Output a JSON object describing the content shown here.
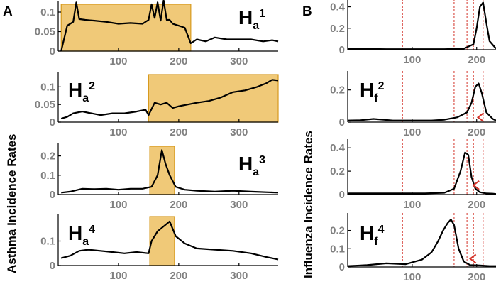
{
  "panel_labels": {
    "a": "A",
    "b": "B"
  },
  "ylabels": {
    "asthma": "Asthma Incidence Rates",
    "influenza": "Influenza Incidence Rates"
  },
  "colors": {
    "band_fill": "#f0c978",
    "band_edge": "#d79a1e",
    "series": "#000000",
    "vline": "#d4342a",
    "tick": "#808080"
  },
  "chart_data": [
    {
      "type": "line",
      "panel": "A",
      "label_main": "H",
      "label_sub": "a",
      "label_sup": "1",
      "xlim": [
        0,
        365
      ],
      "ylim": [
        0,
        0.12
      ],
      "xticks": [
        "100",
        "200",
        "300"
      ],
      "yticks": [
        "0",
        "0.05",
        "0.1"
      ],
      "highlight": [
        5,
        220
      ],
      "x": [
        5,
        15,
        25,
        30,
        35,
        45,
        60,
        80,
        100,
        120,
        140,
        150,
        155,
        160,
        165,
        170,
        175,
        180,
        185,
        190,
        200,
        210,
        220,
        230,
        245,
        260,
        280,
        300,
        320,
        340,
        355,
        365
      ],
      "y": [
        0.0,
        0.065,
        0.075,
        0.125,
        0.082,
        0.08,
        0.078,
        0.075,
        0.07,
        0.072,
        0.07,
        0.08,
        0.12,
        0.085,
        0.125,
        0.078,
        0.13,
        0.08,
        0.08,
        0.07,
        0.065,
        0.06,
        0.02,
        0.03,
        0.025,
        0.035,
        0.03,
        0.03,
        0.03,
        0.025,
        0.028,
        0.025
      ]
    },
    {
      "type": "line",
      "panel": "A",
      "label_main": "H",
      "label_sub": "a",
      "label_sup": "2",
      "xlim": [
        0,
        365
      ],
      "ylim": [
        0,
        0.135
      ],
      "xticks": [
        "100",
        "200",
        "300"
      ],
      "yticks": [
        "0",
        "0.05",
        "0.1"
      ],
      "highlight": [
        150,
        365
      ],
      "x": [
        5,
        15,
        25,
        40,
        55,
        70,
        90,
        110,
        130,
        145,
        150,
        160,
        170,
        180,
        190,
        200,
        215,
        230,
        250,
        270,
        290,
        310,
        330,
        345,
        355,
        365
      ],
      "y": [
        0.01,
        0.015,
        0.025,
        0.03,
        0.025,
        0.02,
        0.025,
        0.025,
        0.03,
        0.035,
        0.02,
        0.055,
        0.05,
        0.055,
        0.04,
        0.045,
        0.05,
        0.055,
        0.06,
        0.07,
        0.085,
        0.09,
        0.1,
        0.11,
        0.12,
        0.118
      ]
    },
    {
      "type": "line",
      "panel": "A",
      "label_main": "H",
      "label_sub": "a",
      "label_sup": "3",
      "xlim": [
        0,
        365
      ],
      "ylim": [
        0,
        0.25
      ],
      "xticks": [
        "100",
        "200",
        "300"
      ],
      "yticks": [
        "0",
        "0.1",
        "0.2"
      ],
      "highlight": [
        152,
        193
      ],
      "x": [
        5,
        20,
        40,
        60,
        80,
        100,
        120,
        140,
        155,
        165,
        172,
        178,
        185,
        195,
        210,
        230,
        260,
        290,
        320,
        345,
        365
      ],
      "y": [
        0.01,
        0.015,
        0.03,
        0.028,
        0.03,
        0.025,
        0.03,
        0.03,
        0.04,
        0.1,
        0.23,
        0.16,
        0.1,
        0.04,
        0.025,
        0.02,
        0.015,
        0.02,
        0.015,
        0.012,
        0.01
      ]
    },
    {
      "type": "line",
      "panel": "A",
      "label_main": "H",
      "label_sub": "a",
      "label_sup": "4",
      "xlim": [
        0,
        365
      ],
      "ylim": [
        0,
        0.2
      ],
      "xticks": [
        "100",
        "200",
        "300"
      ],
      "yticks": [
        "0",
        "0.1"
      ],
      "highlight": [
        152,
        193
      ],
      "x": [
        5,
        20,
        35,
        50,
        70,
        90,
        110,
        130,
        150,
        155,
        165,
        175,
        185,
        195,
        210,
        230,
        260,
        290,
        320,
        345,
        365
      ],
      "y": [
        0.03,
        0.04,
        0.06,
        0.065,
        0.06,
        0.055,
        0.05,
        0.055,
        0.05,
        0.1,
        0.14,
        0.16,
        0.18,
        0.12,
        0.09,
        0.07,
        0.065,
        0.06,
        0.05,
        0.035,
        0.025
      ]
    },
    {
      "type": "line",
      "panel": "B",
      "xlim": [
        0,
        230
      ],
      "ylim": [
        0,
        0.45
      ],
      "xticks": [
        "100",
        "200"
      ],
      "yticks": [
        "0",
        "0.2",
        "0.4"
      ],
      "vlines": [
        85,
        165,
        185,
        195,
        210
      ],
      "x": [
        0,
        60,
        100,
        150,
        180,
        195,
        200,
        205,
        210,
        215,
        220,
        230
      ],
      "y": [
        0.01,
        0.005,
        0.005,
        0.005,
        0.01,
        0.05,
        0.2,
        0.4,
        0.44,
        0.25,
        0.08,
        0.01
      ]
    },
    {
      "type": "line",
      "panel": "B",
      "label_main": "H",
      "label_sub": "f",
      "label_sup": "2",
      "xlim": [
        0,
        230
      ],
      "ylim": [
        0,
        0.3
      ],
      "xticks": [
        "100",
        "200"
      ],
      "yticks": [
        "0",
        "0.2"
      ],
      "vlines": [
        85,
        165,
        185,
        195,
        210
      ],
      "marker": {
        "x": 202,
        "y": 0.03
      },
      "x": [
        0,
        20,
        40,
        70,
        100,
        130,
        150,
        170,
        185,
        192,
        198,
        203,
        208,
        215,
        225,
        230
      ],
      "y": [
        0.01,
        0.012,
        0.02,
        0.01,
        0.01,
        0.01,
        0.015,
        0.03,
        0.06,
        0.12,
        0.22,
        0.24,
        0.18,
        0.06,
        0.02,
        0.01
      ]
    },
    {
      "type": "line",
      "panel": "B",
      "xlim": [
        0,
        230
      ],
      "ylim": [
        0,
        0.45
      ],
      "xticks": [
        "100",
        "200"
      ],
      "yticks": [
        "0",
        "0.2",
        "0.4"
      ],
      "vlines": [
        85,
        165,
        185,
        195,
        210
      ],
      "marker": {
        "x": 195,
        "y": 0.08
      },
      "x": [
        0,
        40,
        80,
        120,
        150,
        165,
        175,
        182,
        187,
        192,
        198,
        205,
        215,
        225,
        230
      ],
      "y": [
        0.01,
        0.01,
        0.01,
        0.01,
        0.015,
        0.05,
        0.2,
        0.36,
        0.34,
        0.15,
        0.05,
        0.02,
        0.01,
        0.008,
        0.005
      ]
    },
    {
      "type": "line",
      "panel": "B",
      "label_main": "H",
      "label_sub": "f",
      "label_sup": "4",
      "xlim": [
        0,
        230
      ],
      "ylim": [
        0,
        0.28
      ],
      "xticks": [
        "100",
        "200"
      ],
      "yticks": [
        "0",
        "0.1",
        "0.2"
      ],
      "vlines": [
        85,
        165,
        185,
        195,
        210
      ],
      "marker": {
        "x": 190,
        "y": 0.045
      },
      "x": [
        0,
        30,
        60,
        90,
        115,
        130,
        140,
        148,
        155,
        160,
        165,
        172,
        180,
        190,
        205,
        220,
        230
      ],
      "y": [
        0.005,
        0.01,
        0.02,
        0.015,
        0.04,
        0.08,
        0.14,
        0.2,
        0.24,
        0.26,
        0.23,
        0.1,
        0.03,
        0.01,
        0.008,
        0.005,
        0.005
      ]
    }
  ]
}
